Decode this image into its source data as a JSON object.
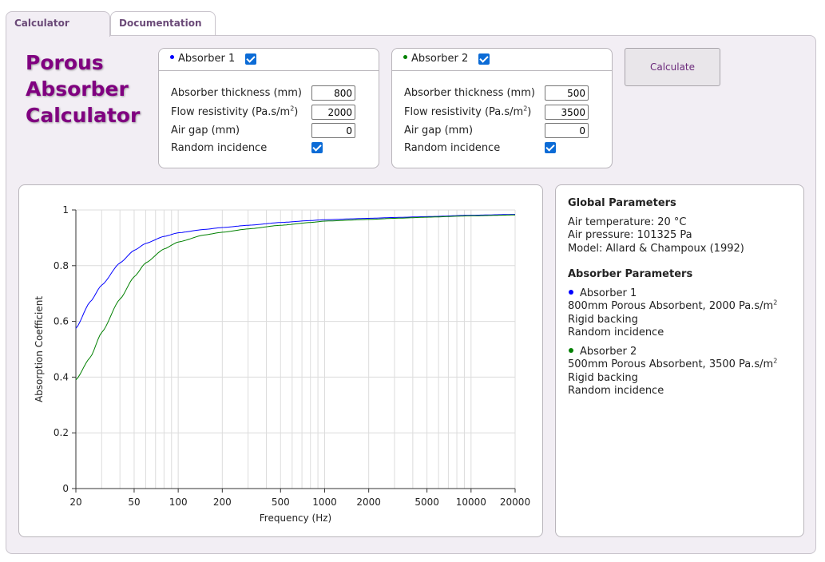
{
  "tabs": [
    {
      "label": "Calculator",
      "active": true
    },
    {
      "label": "Documentation",
      "active": false
    }
  ],
  "app_title": [
    "Porous",
    "Absorber",
    "Calculator"
  ],
  "absorbers": [
    {
      "title": "Absorber 1",
      "color": "#0000ff",
      "enabled": true,
      "thickness_label": "Absorber thickness (mm)",
      "thickness": "800",
      "flow_label": "Flow resistivity (Pa.s/m",
      "flow_sup": "2",
      "flow_close": ")",
      "flow": "2000",
      "gap_label": "Air gap (mm)",
      "gap": "0",
      "random_label": "Random incidence",
      "random": true
    },
    {
      "title": "Absorber 2",
      "color": "#008000",
      "enabled": true,
      "thickness_label": "Absorber thickness (mm)",
      "thickness": "500",
      "flow_label": "Flow resistivity (Pa.s/m",
      "flow_sup": "2",
      "flow_close": ")",
      "flow": "3500",
      "gap_label": "Air gap (mm)",
      "gap": "0",
      "random_label": "Random incidence",
      "random": true
    }
  ],
  "calculate_label": "Calculate",
  "info": {
    "global_heading": "Global Parameters",
    "global_lines": [
      "Air temperature: 20 °C",
      "Air pressure: 101325 Pa",
      "Model: Allard & Champoux (1992)"
    ],
    "absorber_heading": "Absorber Parameters",
    "absorbers": [
      {
        "name": "Absorber 1",
        "color": "#0000ff",
        "desc": "800mm Porous Absorbent, 2000 Pa.s/m",
        "desc_sup": "2",
        "backing": "Rigid backing",
        "incidence": "Random incidence"
      },
      {
        "name": "Absorber 2",
        "color": "#008000",
        "desc": "500mm Porous Absorbent, 3500 Pa.s/m",
        "desc_sup": "2",
        "backing": "Rigid backing",
        "incidence": "Random incidence"
      }
    ]
  },
  "chart_data": {
    "type": "line",
    "xlabel": "Frequency (Hz)",
    "ylabel": "Absorption Coefficient",
    "xscale": "log",
    "xlim": [
      20,
      20000
    ],
    "ylim": [
      0,
      1
    ],
    "xticks": [
      20,
      50,
      100,
      200,
      500,
      1000,
      2000,
      5000,
      10000,
      20000
    ],
    "yticks": [
      0,
      0.2,
      0.4,
      0.6,
      0.8,
      1
    ],
    "ytick_labels": [
      "0",
      "0.2",
      "0.4",
      "0.6",
      "0.8",
      "1"
    ],
    "grid": true,
    "legend": "none",
    "series": [
      {
        "color": "#0000ff",
        "x": [
          20,
          25,
          30,
          40,
          50,
          60,
          80,
          100,
          150,
          200,
          300,
          500,
          800,
          1000,
          2000,
          3000,
          5000,
          10000,
          20000
        ],
        "y": [
          0.575,
          0.67,
          0.73,
          0.81,
          0.855,
          0.88,
          0.905,
          0.918,
          0.93,
          0.937,
          0.945,
          0.955,
          0.962,
          0.965,
          0.97,
          0.973,
          0.976,
          0.981,
          0.984
        ]
      },
      {
        "color": "#008000",
        "x": [
          20,
          25,
          30,
          40,
          50,
          60,
          80,
          100,
          150,
          200,
          300,
          500,
          800,
          1000,
          2000,
          3000,
          5000,
          10000,
          20000
        ],
        "y": [
          0.39,
          0.47,
          0.56,
          0.68,
          0.76,
          0.81,
          0.86,
          0.885,
          0.91,
          0.92,
          0.932,
          0.945,
          0.955,
          0.96,
          0.966,
          0.97,
          0.974,
          0.979,
          0.982
        ]
      }
    ]
  }
}
